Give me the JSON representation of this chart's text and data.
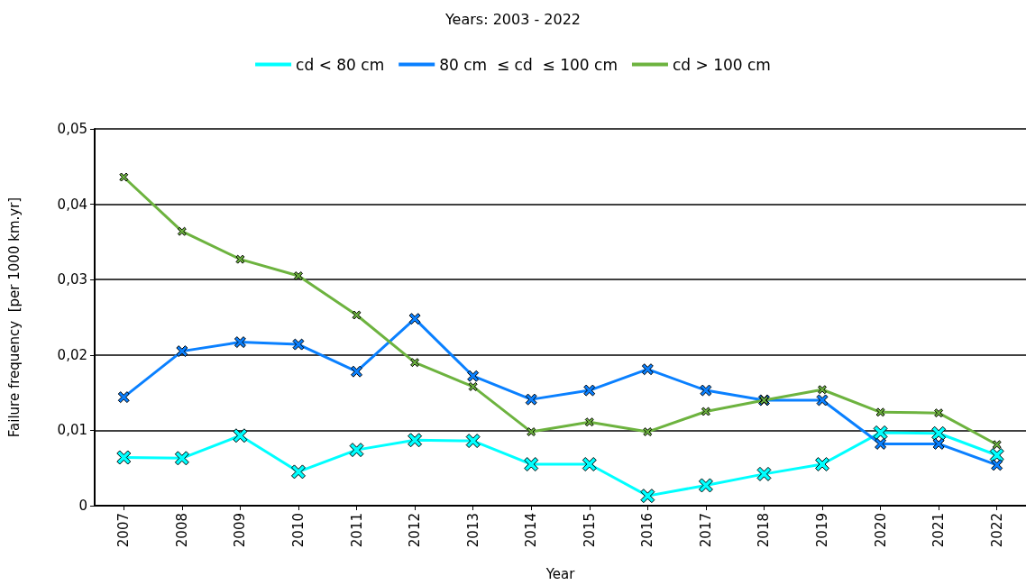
{
  "chart_data": {
    "type": "line",
    "title": "Years: 2003 - 2022",
    "xlabel": "Year",
    "ylabel": "Failure frequency  [per 1000 km.yr]",
    "categories": [
      "2007",
      "2008",
      "2009",
      "2010",
      "2011",
      "2012",
      "2013",
      "2014",
      "2015",
      "2016",
      "2017",
      "2018",
      "2019",
      "2020",
      "2021",
      "2022"
    ],
    "series": [
      {
        "name": "cd < 80 cm",
        "color": "#00ffff",
        "values": [
          0.0064,
          0.0063,
          0.0093,
          0.0045,
          0.0074,
          0.0087,
          0.0086,
          0.0055,
          0.0055,
          0.0013,
          0.0027,
          0.0042,
          0.0055,
          0.0097,
          0.0096,
          0.0067
        ]
      },
      {
        "name": "80 cm  ≤ cd  ≤ 100 cm",
        "color": "#0a80ff",
        "values": [
          0.0144,
          0.0205,
          0.0217,
          0.0214,
          0.0178,
          0.0248,
          0.0172,
          0.0141,
          0.0153,
          0.0181,
          0.0153,
          0.014,
          0.014,
          0.0082,
          0.0082,
          0.0054
        ]
      },
      {
        "name": "cd > 100 cm",
        "color": "#6db33f",
        "values": [
          0.0436,
          0.0364,
          0.0327,
          0.0305,
          0.0253,
          0.019,
          0.0158,
          0.0098,
          0.0111,
          0.0098,
          0.0125,
          0.014,
          0.0154,
          0.0124,
          0.0123,
          0.0081
        ]
      }
    ],
    "ylim": [
      0,
      0.05
    ],
    "yticks": [
      0,
      {
        "value": 0.01,
        "label": "0,01"
      },
      {
        "value": 0.02,
        "label": "0,02"
      },
      {
        "value": 0.03,
        "label": "0,03"
      },
      {
        "value": 0.04,
        "label": "0,04"
      },
      {
        "value": 0.05,
        "label": "0,05"
      }
    ],
    "grid": "y",
    "legend": "top",
    "marker": "cross",
    "line_style": "solid"
  }
}
